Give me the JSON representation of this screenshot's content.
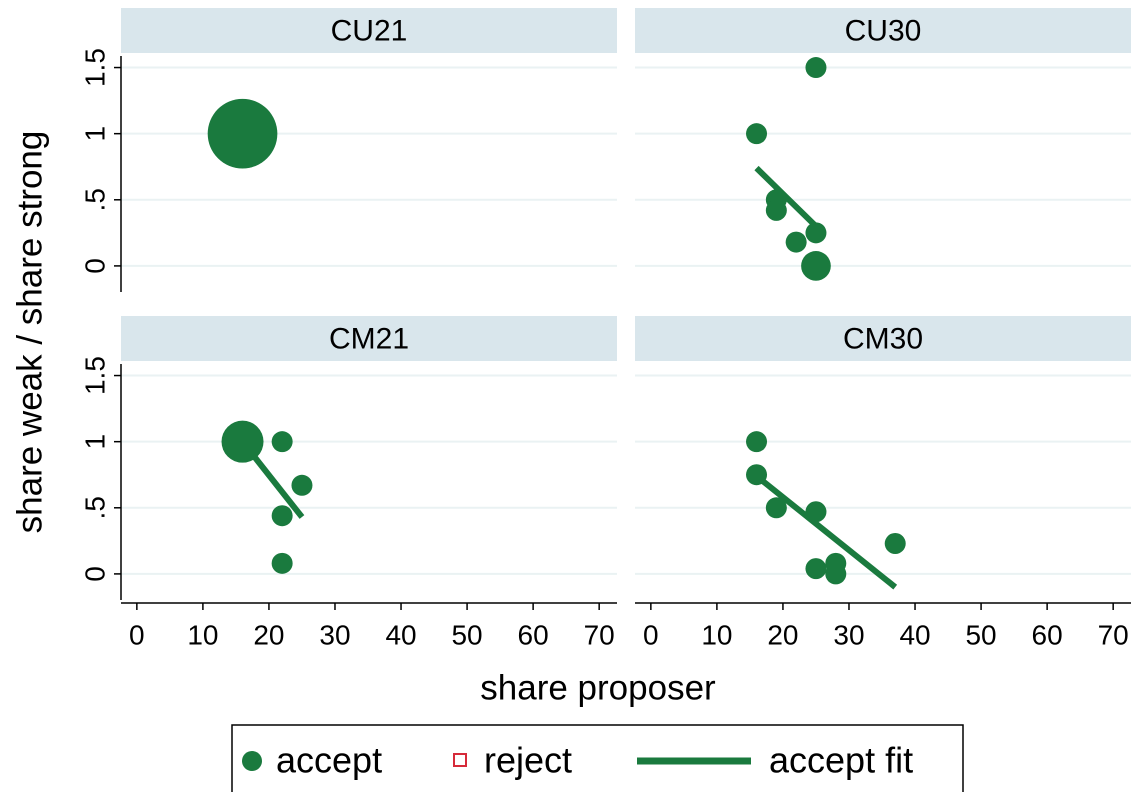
{
  "chart_data": {
    "type": "scatter",
    "xlabel": "share proposer",
    "ylabel": "share weak / share strong",
    "xlim": [
      -2.4,
      72.7
    ],
    "xticks": [
      0,
      10,
      20,
      30,
      40,
      50,
      60,
      70
    ],
    "ylim": [
      -0.22,
      1.61
    ],
    "yticks": [
      0,
      {
        "value": 0.5,
        "label": ".5"
      },
      1,
      1.5
    ],
    "grid": true,
    "legend": [
      {
        "name": "accept",
        "color": "#1a7a3e",
        "marker": "circle"
      },
      {
        "name": "reject",
        "color": "#d62a3a",
        "marker": "square"
      },
      {
        "name": "accept fit",
        "color": "#1a7a3e",
        "marker": "line"
      }
    ],
    "panels": [
      {
        "title": "CU21",
        "x": [
          16
        ],
        "y": [
          1
        ],
        "sizes": [
          11
        ],
        "fit": null
      },
      {
        "title": "CU30",
        "x": [
          16,
          25,
          19,
          19,
          22,
          25,
          25
        ],
        "y": [
          1,
          1.5,
          0.5,
          0.42,
          0.18,
          0.25,
          0
        ],
        "sizes": [
          1,
          1,
          1,
          1,
          1,
          1,
          2
        ],
        "fit": {
          "x": [
            16,
            25
          ],
          "y": [
            0.74,
            0.3
          ]
        }
      },
      {
        "title": "CM21",
        "x": [
          16,
          22,
          25,
          22,
          22
        ],
        "y": [
          1,
          1,
          0.67,
          0.44,
          0.08
        ],
        "sizes": [
          4,
          1,
          1,
          1,
          1
        ],
        "fit": {
          "x": [
            16,
            25
          ],
          "y": [
            1,
            0.43
          ]
        }
      },
      {
        "title": "CM30",
        "x": [
          16,
          16,
          19,
          25,
          37,
          25,
          28,
          28
        ],
        "y": [
          1,
          0.75,
          0.5,
          0.47,
          0.23,
          0.04,
          0.08,
          0
        ],
        "sizes": [
          1,
          1,
          1,
          1,
          1,
          1,
          1,
          1
        ],
        "fit": {
          "x": [
            16,
            37
          ],
          "y": [
            0.74,
            -0.1
          ]
        }
      }
    ]
  }
}
